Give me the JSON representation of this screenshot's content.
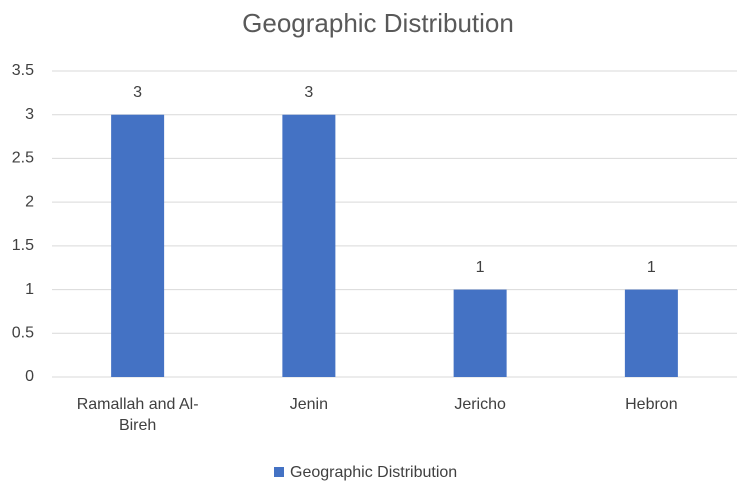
{
  "chart_data": {
    "type": "bar",
    "title": "Geographic Distribution",
    "categories": [
      "Ramallah and Al-Bireh",
      "Jenin",
      "Jericho",
      "Hebron"
    ],
    "series": [
      {
        "name": "Geographic Distribution",
        "color": "#4472c4",
        "values": [
          3,
          3,
          1,
          1
        ]
      }
    ],
    "ylim": [
      0,
      3.5
    ],
    "yticks": [
      0,
      0.5,
      1,
      1.5,
      2,
      2.5,
      3,
      3.5
    ],
    "grid": true,
    "data_labels": true,
    "legend": "bottom"
  }
}
